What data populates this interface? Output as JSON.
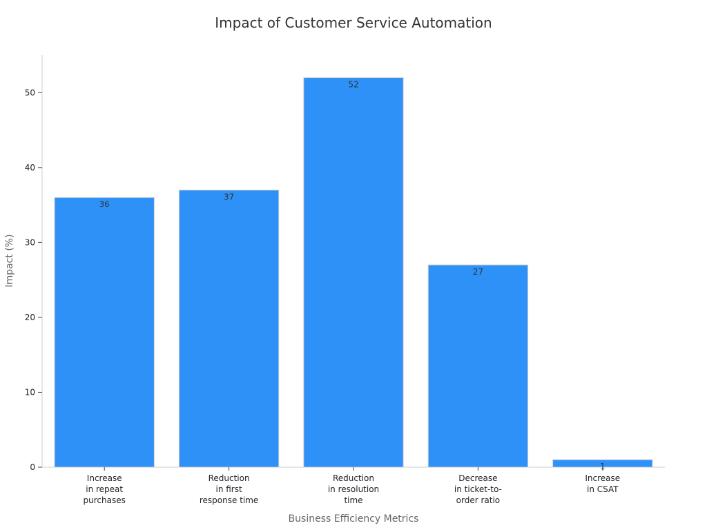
{
  "chart_data": {
    "type": "bar",
    "title": "Impact of Customer Service Automation",
    "xlabel": "Business Efficiency Metrics",
    "ylabel": "Impact (%)",
    "categories": [
      [
        "Increase",
        "in repeat",
        "purchases"
      ],
      [
        "Reduction",
        "in first",
        "response time"
      ],
      [
        "Reduction",
        "in resolution",
        "time"
      ],
      [
        "Decrease",
        "in ticket-to-",
        "order ratio"
      ],
      [
        "Increase",
        "in CSAT"
      ]
    ],
    "values": [
      36,
      37,
      52,
      27,
      1
    ],
    "ylim": [
      0,
      55
    ],
    "yticks": [
      0,
      10,
      20,
      30,
      40,
      50
    ],
    "bar_color": "#2e91f8",
    "bar_edge_color": "#d0d0d0",
    "grid": false,
    "legend": "none"
  }
}
